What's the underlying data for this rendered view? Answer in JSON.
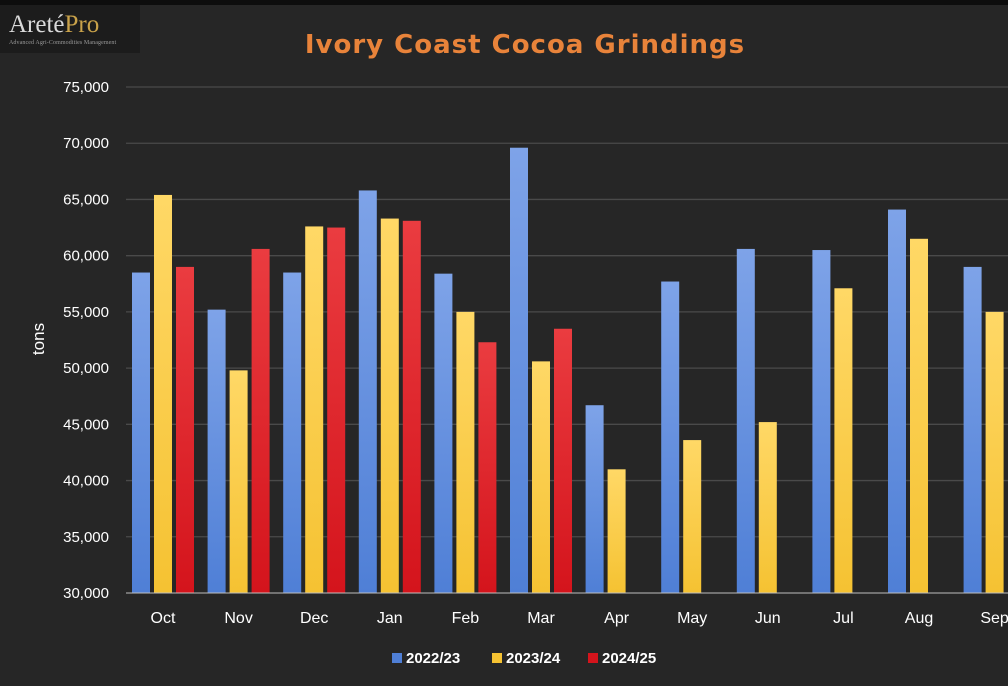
{
  "logo": {
    "name_main": "Areté",
    "name_accent": "Pro",
    "tagline": "Advanced Agri-Commodities Management"
  },
  "colors": {
    "background": "#262626",
    "title": "#e8833a",
    "series": [
      "#4f7fd6",
      "#f5c232",
      "#d4141c"
    ]
  },
  "chart_data": {
    "type": "bar",
    "title": "Ivory Coast Cocoa Grindings",
    "xlabel": "",
    "ylabel": "tons",
    "categories": [
      "Oct",
      "Nov",
      "Dec",
      "Jan",
      "Feb",
      "Mar",
      "Apr",
      "May",
      "Jun",
      "Jul",
      "Aug",
      "Sep"
    ],
    "series": [
      {
        "name": "2022/23",
        "values": [
          58500,
          55200,
          58500,
          65800,
          58400,
          69600,
          46700,
          57700,
          60600,
          60500,
          64100,
          59000
        ]
      },
      {
        "name": "2023/24",
        "values": [
          65400,
          49800,
          62600,
          63300,
          55000,
          50600,
          41000,
          43600,
          45200,
          57100,
          61500,
          55000
        ]
      },
      {
        "name": "2024/25",
        "values": [
          59000,
          60600,
          62500,
          63100,
          52300,
          53500,
          null,
          null,
          null,
          null,
          null,
          null
        ]
      }
    ],
    "ylim": [
      30000,
      75000
    ],
    "yticks": [
      "30,000",
      "35,000",
      "40,000",
      "45,000",
      "50,000",
      "55,000",
      "60,000",
      "65,000",
      "70,000",
      "75,000"
    ],
    "grid": true,
    "legend": "bottom"
  }
}
